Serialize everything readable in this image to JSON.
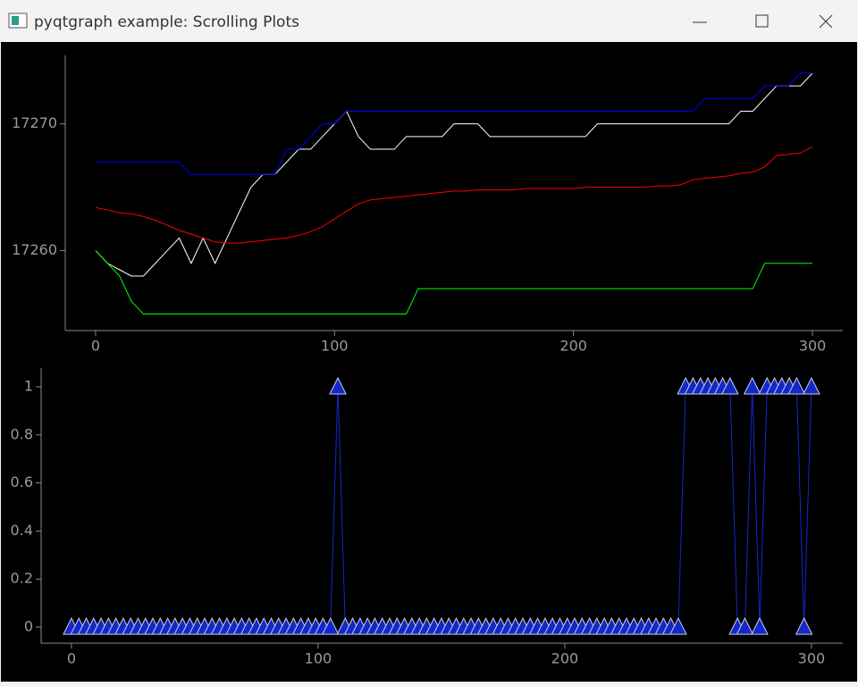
{
  "window": {
    "title": "pyqtgraph example: Scrolling Plots"
  },
  "chart_data": [
    {
      "type": "line",
      "x": [
        0,
        5,
        10,
        15,
        20,
        25,
        30,
        35,
        40,
        45,
        50,
        55,
        60,
        65,
        70,
        75,
        80,
        85,
        90,
        95,
        100,
        105,
        110,
        115,
        120,
        125,
        130,
        135,
        140,
        145,
        150,
        155,
        160,
        165,
        170,
        175,
        180,
        185,
        190,
        195,
        200,
        205,
        210,
        215,
        220,
        225,
        230,
        235,
        240,
        245,
        250,
        255,
        260,
        265,
        270,
        275,
        280,
        285,
        290,
        295,
        300
      ],
      "series": [
        {
          "color": "#ffffff",
          "values": [
            17260,
            17259,
            17258.5,
            17258,
            17258,
            17259,
            17260,
            17261,
            17259,
            17261,
            17259,
            17261,
            17263,
            17265,
            17266,
            17266,
            17267,
            17268,
            17268,
            17269,
            17270,
            17271,
            17269,
            17268,
            17268,
            17268,
            17269,
            17269,
            17269,
            17269,
            17270,
            17270,
            17270,
            17269,
            17269,
            17269,
            17269,
            17269,
            17269,
            17269,
            17269,
            17269,
            17270,
            17270,
            17270,
            17270,
            17270,
            17270,
            17270,
            17270,
            17270,
            17270,
            17270,
            17270,
            17271,
            17271,
            17272,
            17273,
            17273,
            17273,
            17274
          ]
        },
        {
          "color": "#0000ff",
          "values": [
            17267,
            17267,
            17267,
            17267,
            17267,
            17267,
            17267,
            17267,
            17266,
            17266,
            17266,
            17266,
            17266,
            17266,
            17266,
            17266,
            17268,
            17268,
            17269,
            17270,
            17270,
            17271,
            17271,
            17271,
            17271,
            17271,
            17271,
            17271,
            17271,
            17271,
            17271,
            17271,
            17271,
            17271,
            17271,
            17271,
            17271,
            17271,
            17271,
            17271,
            17271,
            17271,
            17271,
            17271,
            17271,
            17271,
            17271,
            17271,
            17271,
            17271,
            17271,
            17272,
            17272,
            17272,
            17272,
            17272,
            17273,
            17273,
            17273,
            17274,
            17274
          ]
        },
        {
          "color": "#00ff00",
          "values": [
            17260,
            17259,
            17258,
            17256,
            17255,
            17255,
            17255,
            17255,
            17255,
            17255,
            17255,
            17255,
            17255,
            17255,
            17255,
            17255,
            17255,
            17255,
            17255,
            17255,
            17255,
            17255,
            17255,
            17255,
            17255,
            17255,
            17255,
            17257,
            17257,
            17257,
            17257,
            17257,
            17257,
            17257,
            17257,
            17257,
            17257,
            17257,
            17257,
            17257,
            17257,
            17257,
            17257,
            17257,
            17257,
            17257,
            17257,
            17257,
            17257,
            17257,
            17257,
            17257,
            17257,
            17257,
            17257,
            17257,
            17259,
            17259,
            17259,
            17259,
            17259
          ]
        },
        {
          "color": "#ff0000",
          "values": [
            17263.4,
            17263.2,
            17263.0,
            17262.9,
            17262.7,
            17262.4,
            17262.0,
            17261.6,
            17261.3,
            17261.0,
            17260.7,
            17260.6,
            17260.6,
            17260.7,
            17260.8,
            17260.9,
            17261.0,
            17261.2,
            17261.5,
            17261.9,
            17262.5,
            17263.1,
            17263.7,
            17264.0,
            17264.1,
            17264.2,
            17264.3,
            17264.4,
            17264.5,
            17264.6,
            17264.7,
            17264.7,
            17264.8,
            17264.8,
            17264.8,
            17264.8,
            17264.9,
            17264.9,
            17264.9,
            17264.9,
            17264.9,
            17265.0,
            17265.0,
            17265.0,
            17265.0,
            17265.0,
            17265.0,
            17265.1,
            17265.1,
            17265.2,
            17265.6,
            17265.7,
            17265.8,
            17265.9,
            17266.1,
            17266.2,
            17266.6,
            17267.5,
            17267.6,
            17267.7,
            17268.2
          ]
        }
      ],
      "xlim": [
        -12.7,
        312.7
      ],
      "xticks": [
        0,
        100,
        200,
        300
      ],
      "ylim": [
        17253.7,
        17275.4
      ],
      "yticks": [
        17260,
        17270
      ]
    },
    {
      "type": "line",
      "marker": "triangle",
      "color": "#1428c8",
      "x": [
        0,
        3,
        6,
        9,
        12,
        15,
        18,
        21,
        24,
        27,
        30,
        33,
        36,
        39,
        42,
        45,
        48,
        51,
        54,
        57,
        60,
        63,
        66,
        69,
        72,
        75,
        78,
        81,
        84,
        87,
        90,
        93,
        96,
        99,
        102,
        105,
        108,
        111,
        114,
        117,
        120,
        123,
        126,
        129,
        132,
        135,
        138,
        141,
        144,
        147,
        150,
        153,
        156,
        159,
        162,
        165,
        168,
        171,
        174,
        177,
        180,
        183,
        186,
        189,
        192,
        195,
        198,
        201,
        204,
        207,
        210,
        213,
        216,
        219,
        222,
        225,
        228,
        231,
        234,
        237,
        240,
        243,
        246,
        249,
        252,
        255,
        258,
        261,
        264,
        267,
        270,
        273,
        276,
        279,
        282,
        285,
        288,
        291,
        294,
        297,
        300
      ],
      "values": [
        0,
        0,
        0,
        0,
        0,
        0,
        0,
        0,
        0,
        0,
        0,
        0,
        0,
        0,
        0,
        0,
        0,
        0,
        0,
        0,
        0,
        0,
        0,
        0,
        0,
        0,
        0,
        0,
        0,
        0,
        0,
        0,
        0,
        0,
        0,
        0,
        1,
        0,
        0,
        0,
        0,
        0,
        0,
        0,
        0,
        0,
        0,
        0,
        0,
        0,
        0,
        0,
        0,
        0,
        0,
        0,
        0,
        0,
        0,
        0,
        0,
        0,
        0,
        0,
        0,
        0,
        0,
        0,
        0,
        0,
        0,
        0,
        0,
        0,
        0,
        0,
        0,
        0,
        0,
        0,
        0,
        0,
        0,
        1,
        1,
        1,
        1,
        1,
        1,
        1,
        0,
        0,
        1,
        0,
        1,
        1,
        1,
        1,
        1,
        0,
        1
      ],
      "xlim": [
        -12.3,
        312.7
      ],
      "xticks": [
        0,
        100,
        200,
        300
      ],
      "ylim": [
        -0.067,
        1.078
      ],
      "yticks": [
        0,
        0.2,
        0.4,
        0.6,
        0.8,
        1
      ]
    }
  ]
}
